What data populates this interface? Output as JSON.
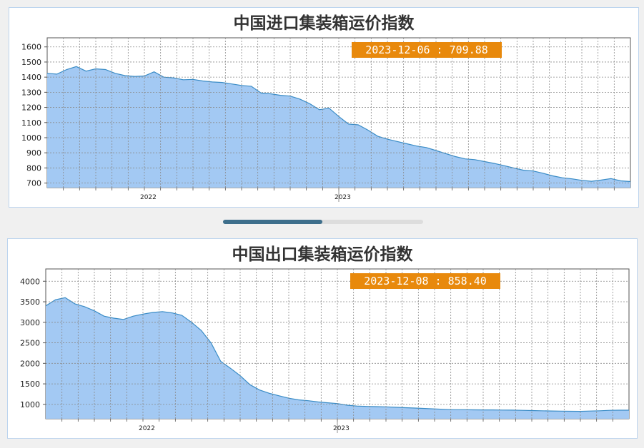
{
  "colors": {
    "area_fill": "#a3c9f3",
    "area_line": "#3a8cc6",
    "badge_bg": "#e8890c",
    "badge_text": "#ffffff",
    "grid": "#8a8a8a"
  },
  "chart_data": [
    {
      "type": "area",
      "title": "中国进口集装箱运价指数",
      "tooltip": "2023-12-06 : 709.88",
      "xlim": [
        2021.0,
        2024.0
      ],
      "ylim": [
        670,
        1660
      ],
      "y_ticks": [
        "700",
        "800",
        "900",
        "1000",
        "1100",
        "1200",
        "1300",
        "1400",
        "1500",
        "1600"
      ],
      "x_labels": [
        {
          "x": 2022,
          "label": "2022"
        },
        {
          "x": 2023,
          "label": "2023"
        }
      ],
      "grid": true,
      "x": [
        2021.0,
        2021.05,
        2021.1,
        2021.15,
        2021.2,
        2021.25,
        2021.3,
        2021.35,
        2021.4,
        2021.45,
        2021.5,
        2021.55,
        2021.6,
        2021.65,
        2021.7,
        2021.75,
        2021.8,
        2021.85,
        2021.9,
        2021.95,
        2022.0,
        2022.05,
        2022.1,
        2022.15,
        2022.2,
        2022.25,
        2022.3,
        2022.35,
        2022.4,
        2022.45,
        2022.5,
        2022.55,
        2022.6,
        2022.65,
        2022.7,
        2022.75,
        2022.8,
        2022.85,
        2022.9,
        2022.95,
        2023.0,
        2023.05,
        2023.1,
        2023.15,
        2023.2,
        2023.25,
        2023.3,
        2023.35,
        2023.4,
        2023.45,
        2023.5,
        2023.55,
        2023.6,
        2023.65,
        2023.7,
        2023.75,
        2023.8,
        2023.85,
        2023.9,
        2023.95,
        2024.0
      ],
      "values": [
        1425,
        1420,
        1450,
        1470,
        1440,
        1455,
        1450,
        1425,
        1410,
        1405,
        1408,
        1435,
        1400,
        1395,
        1383,
        1385,
        1375,
        1368,
        1365,
        1355,
        1345,
        1340,
        1295,
        1290,
        1280,
        1275,
        1255,
        1225,
        1185,
        1195,
        1140,
        1090,
        1085,
        1050,
        1010,
        990,
        975,
        960,
        945,
        935,
        915,
        895,
        875,
        860,
        855,
        842,
        830,
        815,
        800,
        785,
        780,
        765,
        748,
        735,
        728,
        718,
        712,
        720,
        730,
        715,
        709.88
      ]
    },
    {
      "type": "area",
      "title": "中国出口集装箱运价指数",
      "tooltip": "2023-12-08 : 858.40",
      "xlim": [
        2021.0,
        2024.0
      ],
      "ylim": [
        650,
        4300
      ],
      "y_ticks": [
        "1000",
        "1500",
        "2000",
        "2500",
        "3000",
        "3500",
        "4000"
      ],
      "x_labels": [
        {
          "x": 2022,
          "label": "2022"
        },
        {
          "x": 2023,
          "label": "2023"
        }
      ],
      "grid": true,
      "x": [
        2021.0,
        2021.05,
        2021.1,
        2021.15,
        2021.2,
        2021.25,
        2021.3,
        2021.35,
        2021.4,
        2021.45,
        2021.5,
        2021.55,
        2021.6,
        2021.65,
        2021.7,
        2021.75,
        2021.8,
        2021.85,
        2021.9,
        2021.95,
        2022.0,
        2022.05,
        2022.1,
        2022.15,
        2022.2,
        2022.25,
        2022.3,
        2022.35,
        2022.4,
        2022.45,
        2022.5,
        2022.55,
        2022.6,
        2022.65,
        2022.7,
        2022.75,
        2022.8,
        2022.85,
        2022.9,
        2022.95,
        2023.0,
        2023.05,
        2023.1,
        2023.15,
        2023.2,
        2023.25,
        2023.3,
        2023.35,
        2023.4,
        2023.45,
        2023.5,
        2023.55,
        2023.6,
        2023.65,
        2023.7,
        2023.75,
        2023.8,
        2023.85,
        2023.9,
        2023.95,
        2024.0
      ],
      "values": [
        3400,
        3550,
        3600,
        3450,
        3380,
        3280,
        3150,
        3100,
        3070,
        3150,
        3200,
        3240,
        3260,
        3230,
        3170,
        3000,
        2800,
        2500,
        2050,
        1880,
        1700,
        1480,
        1350,
        1270,
        1210,
        1150,
        1110,
        1090,
        1060,
        1040,
        1020,
        980,
        960,
        950,
        945,
        940,
        930,
        920,
        910,
        900,
        890,
        880,
        870,
        870,
        868,
        866,
        865,
        862,
        860,
        855,
        850,
        845,
        840,
        836,
        832,
        830,
        838,
        845,
        855,
        858,
        858.4
      ]
    }
  ]
}
